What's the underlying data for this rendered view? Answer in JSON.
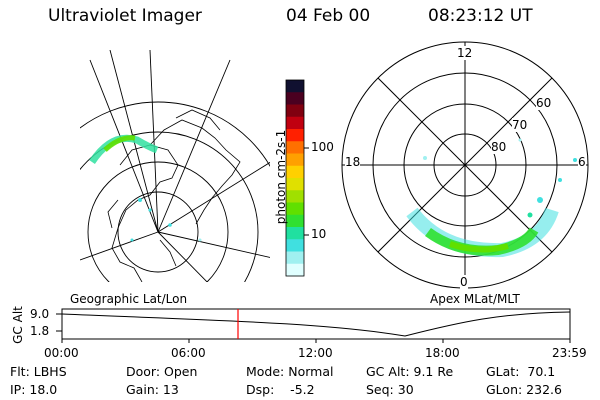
{
  "header": {
    "title": "Ultraviolet Imager",
    "date": "04 Feb 00",
    "time": "08:23:12 UT"
  },
  "panels": {
    "left_label": "Geographic Lat/Lon",
    "right_label": "Apex MLat/MLT"
  },
  "colorbar": {
    "unit_label": "photon cm-2s-1",
    "ticks": [
      "100",
      "10"
    ],
    "colors": [
      "#101030",
      "#4a0020",
      "#800010",
      "#c00010",
      "#ff2000",
      "#ff7000",
      "#ffa000",
      "#ffd000",
      "#e0e000",
      "#a0e000",
      "#60e000",
      "#30e030",
      "#20e0a0",
      "#40e0e0",
      "#a0f0f0",
      "#e0ffff"
    ]
  },
  "polar": {
    "mlt_labels": [
      "12",
      "18",
      "6",
      "0"
    ],
    "mlat_labels": [
      "60",
      "70",
      "80"
    ]
  },
  "altitude_plot": {
    "ylabel": "GC Alt",
    "yticks": [
      "9.0",
      "1.8"
    ],
    "xticks": [
      "00:00",
      "06:00",
      "12:00",
      "18:00",
      "23:59"
    ],
    "current_time_color": "#ff0000"
  },
  "info": {
    "flt": "Flt: LBHS",
    "ip": "IP: 18.0",
    "door": "Door: Open",
    "gain": "Gain: 13",
    "mode": "Mode: Normal",
    "dsp": "Dsp:    -5.2",
    "gcalt": "GC Alt: 9.1 Re",
    "seq": "Seq: 30",
    "glat": "GLat:  70.1",
    "glon": "GLon: 232.6"
  }
}
